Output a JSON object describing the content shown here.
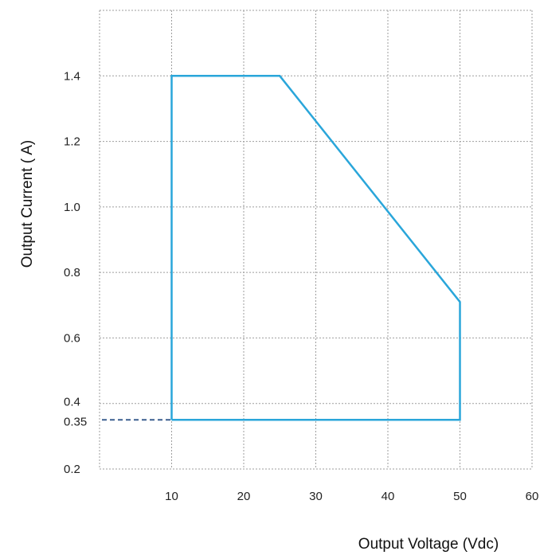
{
  "chart_data": {
    "type": "line",
    "title": "",
    "xlabel": "Output Voltage (Vdc)",
    "ylabel": "Output Current ( A)",
    "xlim": [
      0,
      60
    ],
    "ylim": [
      0.2,
      1.6
    ],
    "x_ticks": [
      10,
      20,
      30,
      40,
      50,
      60
    ],
    "x_tick_labels": [
      "10",
      "20",
      "30",
      "40",
      "50",
      "60"
    ],
    "y_ticks": [
      0.2,
      0.35,
      0.4,
      0.6,
      0.8,
      1.0,
      1.2,
      1.4
    ],
    "y_tick_labels": [
      "0.2",
      "0.35",
      "0.4",
      "0.6",
      "0.8",
      "1.0",
      "1.2",
      "1.4"
    ],
    "grid": true,
    "series": [
      {
        "x": [
          10,
          10,
          25,
          50,
          50,
          10
        ],
        "y": [
          0.35,
          1.4,
          1.4,
          0.71,
          0.35,
          0.35
        ],
        "color": "#2aa6da"
      }
    ],
    "reference_line": {
      "x": [
        0,
        10
      ],
      "y": [
        0.35,
        0.35
      ],
      "style": "dashed",
      "color": "#3b5f8f"
    }
  }
}
